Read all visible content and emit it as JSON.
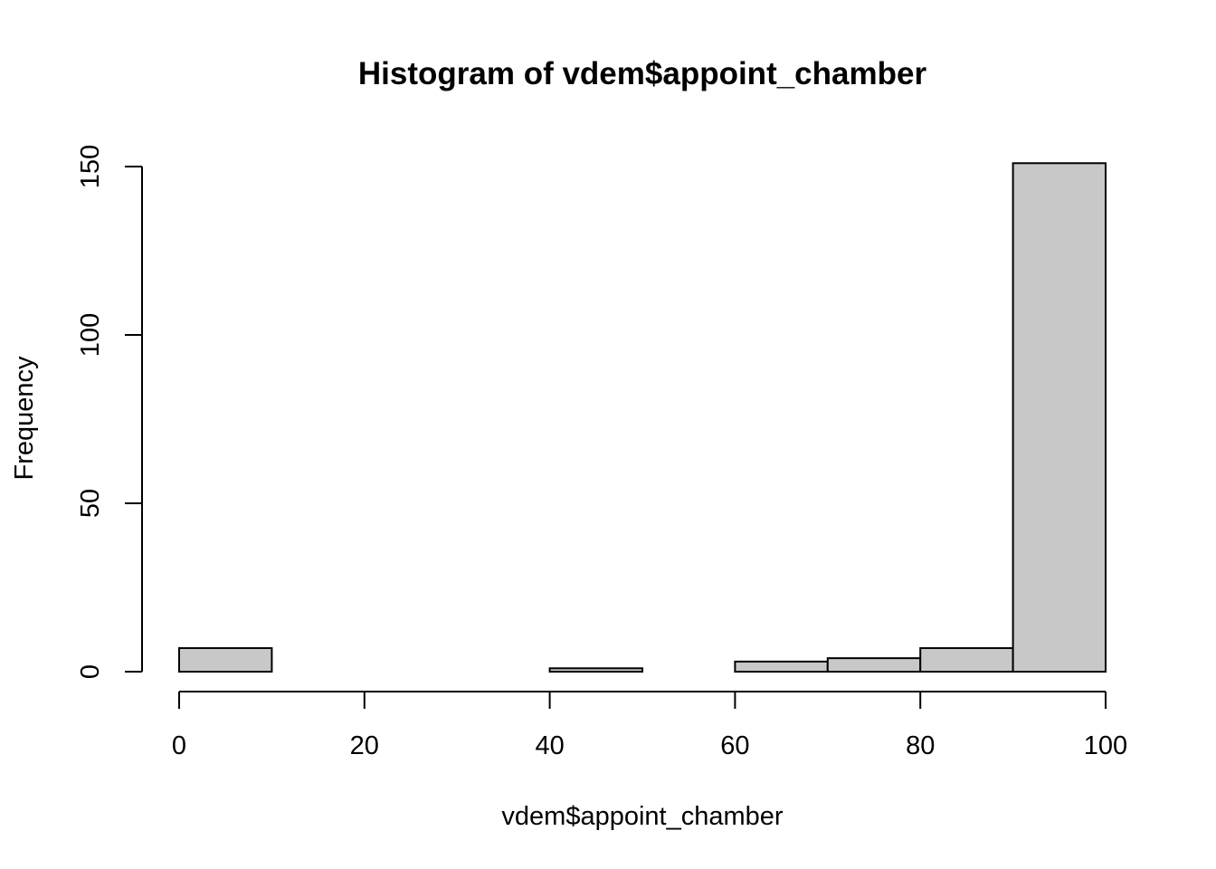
{
  "chart_data": {
    "type": "bar",
    "title": "Histogram of vdem$appoint_chamber",
    "xlabel": "vdem$appoint_chamber",
    "ylabel": "Frequency",
    "bins": [
      {
        "from": 0,
        "to": 10,
        "count": 7
      },
      {
        "from": 10,
        "to": 20,
        "count": 0
      },
      {
        "from": 20,
        "to": 30,
        "count": 0
      },
      {
        "from": 30,
        "to": 40,
        "count": 0
      },
      {
        "from": 40,
        "to": 50,
        "count": 1
      },
      {
        "from": 50,
        "to": 60,
        "count": 0
      },
      {
        "from": 60,
        "to": 70,
        "count": 3
      },
      {
        "from": 70,
        "to": 80,
        "count": 4
      },
      {
        "from": 80,
        "to": 90,
        "count": 7
      },
      {
        "from": 90,
        "to": 100,
        "count": 151
      }
    ],
    "xlim": [
      0,
      100
    ],
    "ylim": [
      0,
      151
    ],
    "xticks": [
      "0",
      "20",
      "40",
      "60",
      "80",
      "100"
    ],
    "yticks": [
      "0",
      "50",
      "100",
      "150"
    ],
    "bar_color": "#c8c8c8",
    "edge_color": "#000000",
    "grid": false
  }
}
